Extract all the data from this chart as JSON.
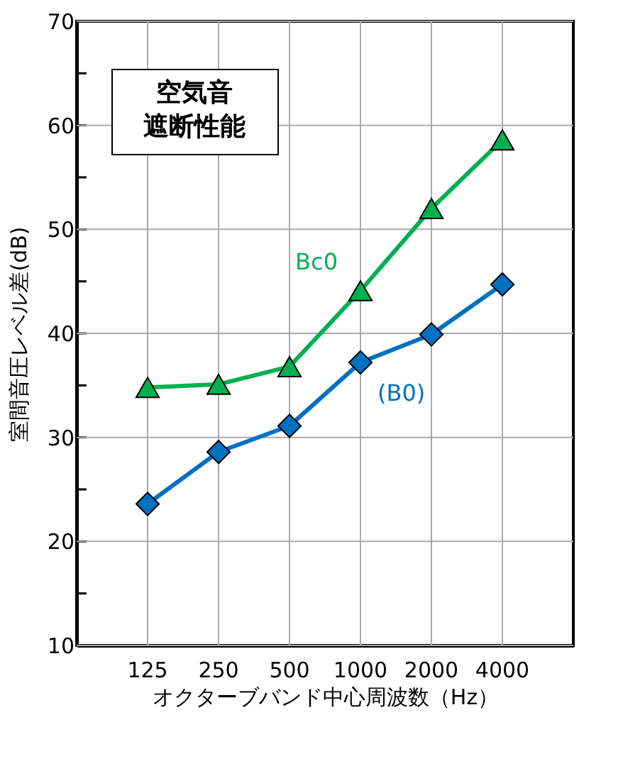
{
  "chart_data": {
    "type": "line",
    "xlabel": "オクターブバンド中心周波数（Hz）",
    "ylabel": "室間音圧レベル差(dB)",
    "categories": [
      "125",
      "250",
      "500",
      "1000",
      "2000",
      "4000"
    ],
    "series": [
      {
        "name": "Bc0",
        "color": "#00b050",
        "marker": "triangle",
        "values": [
          34.8,
          35.1,
          36.8,
          44.1,
          52.0,
          58.6
        ]
      },
      {
        "name": "(B0)",
        "color": "#0070c0",
        "marker": "diamond",
        "values": [
          23.6,
          28.6,
          31.1,
          37.2,
          39.9,
          44.7
        ]
      }
    ],
    "ylim": [
      10,
      70
    ],
    "yticks": [
      10,
      {
        "value": 15,
        "label": null
      },
      20,
      {
        "value": 25,
        "label": null
      },
      30,
      {
        "value": 35,
        "label": null
      },
      40,
      {
        "value": 45,
        "label": null
      },
      50,
      {
        "value": 55,
        "label": null
      },
      60,
      {
        "value": 65,
        "label": null
      },
      70
    ],
    "grid": true,
    "legend": false,
    "annotations": [
      "空気音",
      "遮断性能"
    ]
  }
}
